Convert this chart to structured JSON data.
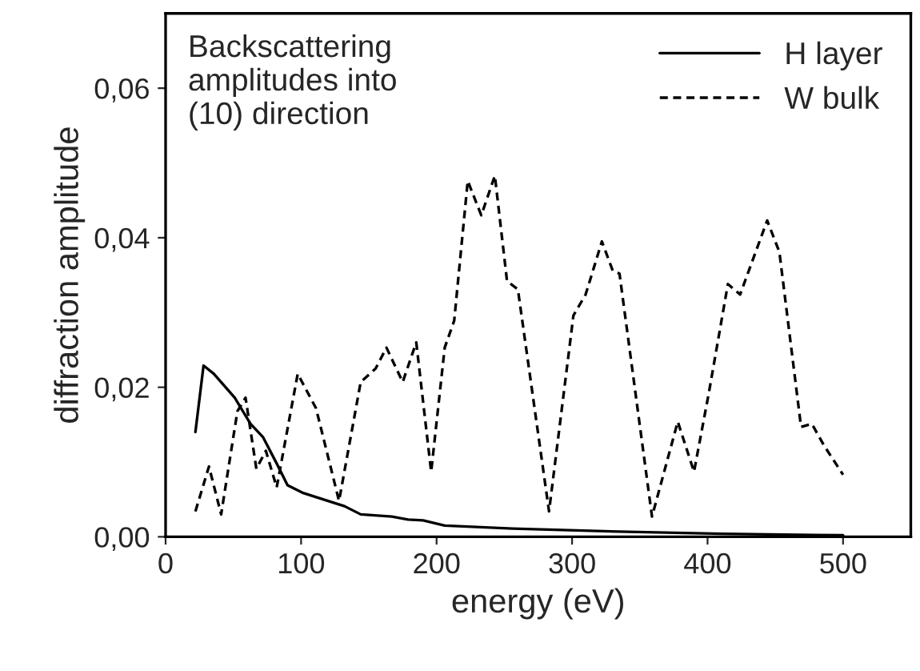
{
  "chart_data": {
    "type": "line",
    "xlabel": "energy (eV)",
    "ylabel": "diffraction amplitude",
    "annotations": [
      "Backscattering\namplitudes into\n(10) direction"
    ],
    "xlim": [
      0,
      550
    ],
    "xticks": [
      0,
      100,
      200,
      300,
      400,
      500
    ],
    "ylim": [
      0,
      0.07
    ],
    "yticks": [
      {
        "value": 0,
        "label": "0,00"
      },
      {
        "value": 0.02,
        "label": "0,02"
      },
      {
        "value": 0.04,
        "label": "0,04"
      },
      {
        "value": 0.06,
        "label": "0,06"
      }
    ],
    "legend": "top right",
    "grid": false,
    "marker": "none",
    "series": [
      {
        "name": "H layer",
        "color": "#000000",
        "line_style": "solid",
        "x": [
          22,
          28,
          35.6,
          51,
          62.7,
          72,
          82,
          90,
          101,
          113,
          125,
          132,
          144,
          167,
          179,
          190,
          206,
          256,
          334,
          411,
          500
        ],
        "values": [
          0.014,
          0.0229,
          0.0218,
          0.0186,
          0.0151,
          0.0133,
          0.0098,
          0.0069,
          0.0059,
          0.0052,
          0.0045,
          0.0041,
          0.003,
          0.0027,
          0.0023,
          0.0022,
          0.0015,
          0.0011,
          0.0007,
          0.0004,
          0.0002
        ]
      },
      {
        "name": "W bulk",
        "color": "#000000",
        "line_style": "dashed",
        "x": [
          22,
          32,
          41,
          53,
          59,
          67,
          74,
          82,
          97.5,
          111,
          128,
          144,
          155,
          163,
          175,
          185,
          196,
          206,
          213,
          223,
          233,
          243,
          252,
          260,
          283,
          301,
          310,
          322,
          330,
          335,
          359,
          378,
          390,
          401,
          415,
          424,
          444,
          453,
          469,
          477,
          486,
          500
        ],
        "values": [
          0.0034,
          0.0094,
          0.003,
          0.0168,
          0.0186,
          0.0091,
          0.0115,
          0.0066,
          0.0218,
          0.0172,
          0.0048,
          0.0207,
          0.0225,
          0.0253,
          0.0207,
          0.026,
          0.0087,
          0.0253,
          0.0289,
          0.0476,
          0.043,
          0.0483,
          0.0342,
          0.0331,
          0.0034,
          0.0296,
          0.0324,
          0.0395,
          0.0356,
          0.0352,
          0.0027,
          0.0154,
          0.0087,
          0.0193,
          0.0338,
          0.0324,
          0.0423,
          0.0381,
          0.0147,
          0.0151,
          0.0122,
          0.0083
        ]
      }
    ]
  }
}
